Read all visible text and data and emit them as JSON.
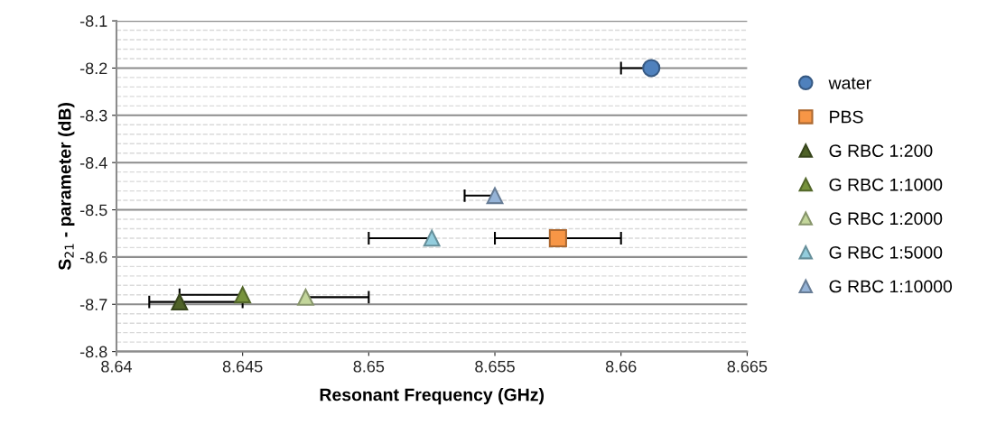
{
  "chart_data": {
    "type": "scatter",
    "xlabel": "Resonant Frequency (GHz)",
    "ylabel": "S$_{21}$ - parameter (dB)",
    "xlim": [
      8.64,
      8.665
    ],
    "xticks": [
      8.64,
      8.645,
      8.65,
      8.655,
      8.66,
      8.665
    ],
    "ylim": [
      -8.8,
      -8.1
    ],
    "yticks": [
      -8.8,
      -8.7,
      -8.6,
      -8.5,
      -8.4,
      -8.3,
      -8.2,
      -8.1
    ],
    "grid": "y",
    "legend": "right",
    "series": [
      {
        "name": "water",
        "color": "#4f81bd",
        "marker": "circle",
        "x": [
          8.6612
        ],
        "values": [
          -8.2
        ],
        "xerrors": [
          [
            8.66,
            8.6612
          ]
        ]
      },
      {
        "name": "PBS",
        "color": "#f79646",
        "marker": "square",
        "x": [
          8.6575
        ],
        "values": [
          -8.56
        ],
        "xerrors": [
          0.0025
        ]
      },
      {
        "name": "G RBC 1:200",
        "color": "#4f6228",
        "marker": "triangle",
        "x": [
          8.6425
        ],
        "values": [
          -8.695
        ],
        "xerrors": [
          [
            8.6413,
            8.645
          ]
        ]
      },
      {
        "name": "G RBC 1:1000",
        "color": "#77933c",
        "marker": "triangle",
        "x": [
          8.645
        ],
        "values": [
          -8.68
        ],
        "xerrors": [
          [
            8.6425,
            8.645
          ]
        ]
      },
      {
        "name": "G RBC 1:2000",
        "color": "#c3d69b",
        "marker": "triangle",
        "x": [
          8.6475
        ],
        "values": [
          -8.685
        ],
        "xerrors": [
          [
            8.6475,
            8.65
          ]
        ]
      },
      {
        "name": "G RBC 1:5000",
        "color": "#93cddd",
        "marker": "triangle",
        "x": [
          8.6525
        ],
        "values": [
          -8.56
        ],
        "xerrors": [
          [
            8.65,
            8.6525
          ]
        ]
      },
      {
        "name": "G RBC 1:10000",
        "color": "#95b3d7",
        "marker": "triangle",
        "x": [
          8.655
        ],
        "values": [
          -8.47
        ],
        "xerrors": [
          [
            8.6538,
            8.655
          ]
        ]
      }
    ]
  }
}
